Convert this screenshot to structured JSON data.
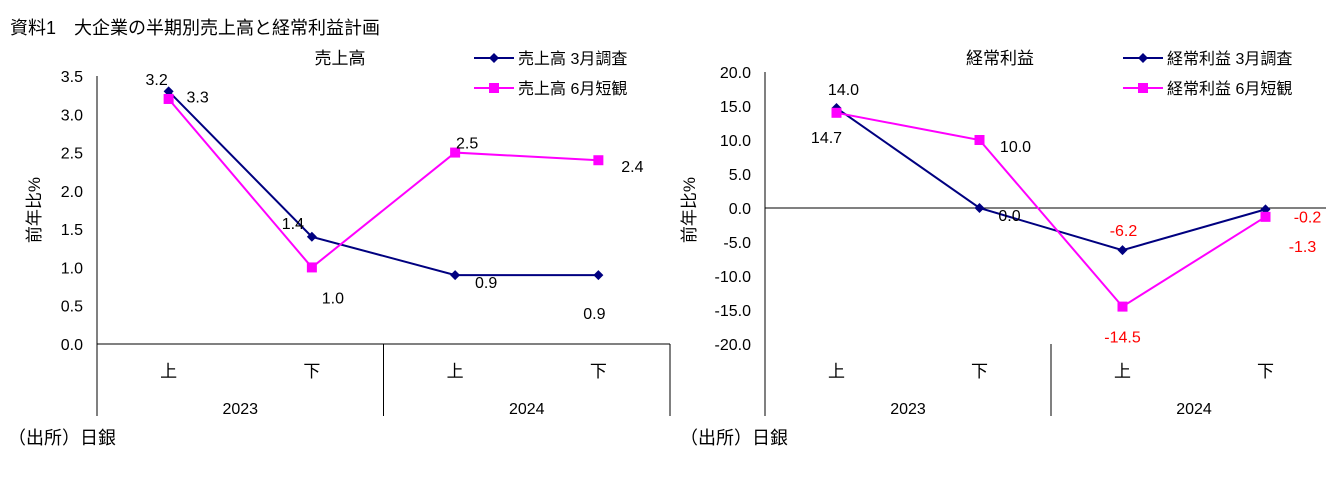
{
  "title": "資料1　大企業の半期別売上高と経常利益計画",
  "source_left": "（出所）日銀",
  "source_right": "（出所）日銀",
  "colors": {
    "march": "#000080",
    "june": "#FF00FF",
    "negative_label": "#FF0000"
  },
  "chart_data": [
    {
      "type": "line",
      "title": "売上高",
      "ylabel": "前年比%",
      "ylim": [
        0.0,
        3.5
      ],
      "yticks": [
        "0.0",
        "0.5",
        "1.0",
        "1.5",
        "2.0",
        "2.5",
        "3.0",
        "3.5"
      ],
      "categories": [
        "上",
        "下",
        "上",
        "下"
      ],
      "groups": [
        "2023",
        "2024"
      ],
      "legend": "top-right",
      "series": [
        {
          "name": "売上高 3月調査",
          "marker": "diamond",
          "values": [
            3.3,
            1.4,
            0.9,
            0.9
          ],
          "labels": [
            "3.3",
            "1.4",
            "0.9",
            "0.9"
          ]
        },
        {
          "name": "売上高 6月短観",
          "marker": "square",
          "values": [
            3.2,
            1.0,
            2.5,
            2.4
          ],
          "labels": [
            "3.2",
            "1.0",
            "2.5",
            "2.4"
          ]
        }
      ]
    },
    {
      "type": "line",
      "title": "経常利益",
      "ylabel": "前年比%",
      "ylim": [
        -20.0,
        20.0
      ],
      "yticks": [
        "-20.0",
        "-15.0",
        "-10.0",
        "-5.0",
        "0.0",
        "5.0",
        "10.0",
        "15.0",
        "20.0"
      ],
      "categories": [
        "上",
        "下",
        "上",
        "下"
      ],
      "groups": [
        "2023",
        "2024"
      ],
      "legend": "top-right",
      "series": [
        {
          "name": "経常利益 3月調査",
          "marker": "diamond",
          "values": [
            14.7,
            0.0,
            -6.2,
            -0.2
          ],
          "labels": [
            "14.7",
            "0.0",
            "-6.2",
            "-0.2"
          ]
        },
        {
          "name": "経常利益 6月短観",
          "marker": "square",
          "values": [
            14.0,
            10.0,
            -14.5,
            -1.3
          ],
          "labels": [
            "14.0",
            "10.0",
            "-14.5",
            "-1.3"
          ]
        }
      ]
    }
  ]
}
